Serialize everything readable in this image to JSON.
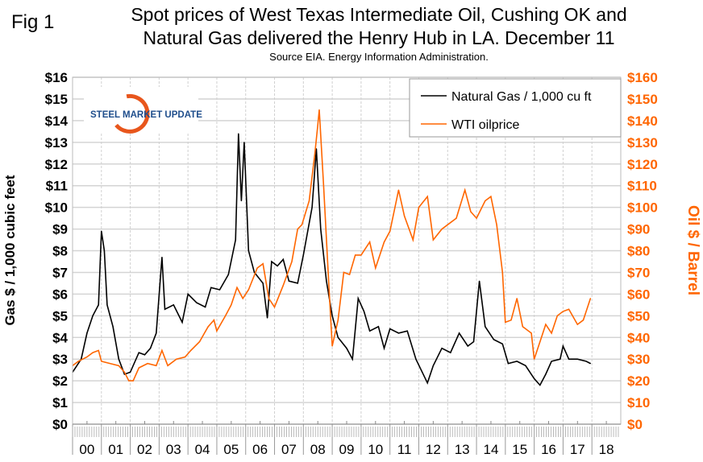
{
  "chart_data": {
    "type": "line",
    "fig_label": "Fig 1",
    "title": "Spot prices of West Texas Intermediate Oil, Cushing OK and Natural Gas delivered the Henry Hub in LA. December 11",
    "title_lines": [
      "Spot prices of West Texas Intermediate Oil, Cushing OK and",
      "Natural Gas delivered the Henry Hub in LA. December 11"
    ],
    "subtitle": "Source EIA. Energy Information Administration.",
    "logo_text": "STEEL MARKET UPDATE",
    "ylabel_left": "Gas $ / 1,000 cubic feet",
    "ylabel_right": "Oil $ / Barrel",
    "ylim_left": [
      0,
      16
    ],
    "ylim_right": [
      0,
      160
    ],
    "xlim": [
      2000,
      2019
    ],
    "left_ticks": [
      "$0",
      "$1",
      "$2",
      "$3",
      "$4",
      "$5",
      "$6",
      "$7",
      "$8",
      "$9",
      "$10",
      "$11",
      "$12",
      "$13",
      "$14",
      "$15",
      "$16"
    ],
    "right_ticks": [
      "$0",
      "$10",
      "$20",
      "$30",
      "$40",
      "$50",
      "$60",
      "$70",
      "$80",
      "$90",
      "$100",
      "$110",
      "$120",
      "$130",
      "$140",
      "$150",
      "$160"
    ],
    "x_tick_labels": [
      "00",
      "01",
      "02",
      "03",
      "04",
      "05",
      "06",
      "07",
      "08",
      "09",
      "10",
      "11",
      "12",
      "13",
      "14",
      "15",
      "16",
      "17",
      "18"
    ],
    "grid": true,
    "legend_position": "top-right",
    "colors": {
      "gas": "#000000",
      "oil": "#ff6600",
      "right_axis": "#ff6600"
    },
    "series": [
      {
        "name": "Natural Gas / 1,000 cu ft",
        "axis": "left",
        "x": [
          2000.0,
          2000.3,
          2000.5,
          2000.7,
          2000.9,
          2001.0,
          2001.1,
          2001.2,
          2001.4,
          2001.6,
          2001.8,
          2002.0,
          2002.3,
          2002.5,
          2002.7,
          2002.9,
          2003.1,
          2003.2,
          2003.5,
          2003.8,
          2004.0,
          2004.3,
          2004.6,
          2004.8,
          2005.1,
          2005.4,
          2005.65,
          2005.75,
          2005.85,
          2005.95,
          2006.1,
          2006.3,
          2006.6,
          2006.75,
          2006.9,
          2007.1,
          2007.3,
          2007.5,
          2007.8,
          2008.0,
          2008.3,
          2008.45,
          2008.6,
          2008.8,
          2009.0,
          2009.2,
          2009.5,
          2009.7,
          2009.9,
          2010.1,
          2010.3,
          2010.6,
          2010.8,
          2011.0,
          2011.3,
          2011.6,
          2011.9,
          2012.3,
          2012.5,
          2012.8,
          2013.1,
          2013.4,
          2013.7,
          2013.9,
          2014.1,
          2014.3,
          2014.6,
          2014.9,
          2015.1,
          2015.4,
          2015.7,
          2016.0,
          2016.2,
          2016.4,
          2016.6,
          2016.9,
          2017.0,
          2017.2,
          2017.5,
          2017.8,
          2017.95
        ],
        "values": [
          2.4,
          3.0,
          4.2,
          5.0,
          5.5,
          8.9,
          8.0,
          5.5,
          4.5,
          3.0,
          2.3,
          2.4,
          3.3,
          3.2,
          3.5,
          4.2,
          7.7,
          5.3,
          5.5,
          4.7,
          6.0,
          5.6,
          5.4,
          6.3,
          6.2,
          6.9,
          8.5,
          13.4,
          10.3,
          13.0,
          8.0,
          7.0,
          6.5,
          4.9,
          7.5,
          7.3,
          7.6,
          6.6,
          6.5,
          7.8,
          10.0,
          12.7,
          9.0,
          6.6,
          5.0,
          4.0,
          3.5,
          3.0,
          5.8,
          5.2,
          4.3,
          4.5,
          3.5,
          4.4,
          4.2,
          4.3,
          3.0,
          1.9,
          2.7,
          3.5,
          3.3,
          4.2,
          3.6,
          3.8,
          6.6,
          4.5,
          3.9,
          3.7,
          2.8,
          2.9,
          2.7,
          2.1,
          1.8,
          2.3,
          2.9,
          3.0,
          3.6,
          3.0,
          3.0,
          2.9,
          2.8
        ]
      },
      {
        "name": "WTI oilprice",
        "axis": "right",
        "x": [
          2000.0,
          2000.2,
          2000.5,
          2000.7,
          2000.9,
          2001.0,
          2001.3,
          2001.6,
          2001.8,
          2001.95,
          2002.1,
          2002.3,
          2002.6,
          2002.9,
          2003.1,
          2003.3,
          2003.6,
          2003.9,
          2004.1,
          2004.4,
          2004.7,
          2004.9,
          2005.0,
          2005.3,
          2005.5,
          2005.7,
          2005.9,
          2006.1,
          2006.4,
          2006.6,
          2006.8,
          2007.0,
          2007.3,
          2007.6,
          2007.8,
          2007.95,
          2008.2,
          2008.4,
          2008.5,
          2008.55,
          2008.7,
          2008.9,
          2009.0,
          2009.2,
          2009.4,
          2009.6,
          2009.8,
          2010.0,
          2010.3,
          2010.5,
          2010.8,
          2011.0,
          2011.3,
          2011.5,
          2011.8,
          2012.0,
          2012.3,
          2012.5,
          2012.8,
          2013.0,
          2013.3,
          2013.6,
          2013.8,
          2014.0,
          2014.3,
          2014.5,
          2014.7,
          2014.9,
          2015.0,
          2015.2,
          2015.4,
          2015.6,
          2015.9,
          2016.0,
          2016.2,
          2016.4,
          2016.6,
          2016.8,
          2017.0,
          2017.2,
          2017.5,
          2017.7,
          2017.95
        ],
        "values": [
          27,
          29,
          31,
          33,
          34,
          29,
          28,
          27,
          24,
          20,
          20,
          26,
          28,
          27,
          34,
          27,
          30,
          31,
          34,
          38,
          45,
          48,
          43,
          50,
          55,
          63,
          58,
          62,
          72,
          74,
          58,
          54,
          64,
          75,
          90,
          92,
          103,
          125,
          138,
          145,
          110,
          60,
          36,
          48,
          70,
          69,
          78,
          78,
          84,
          72,
          84,
          89,
          108,
          96,
          85,
          100,
          105,
          85,
          90,
          92,
          95,
          108,
          98,
          95,
          103,
          105,
          92,
          70,
          47,
          48,
          58,
          45,
          42,
          30,
          38,
          46,
          42,
          50,
          52,
          53,
          46,
          48,
          58
        ]
      }
    ]
  }
}
